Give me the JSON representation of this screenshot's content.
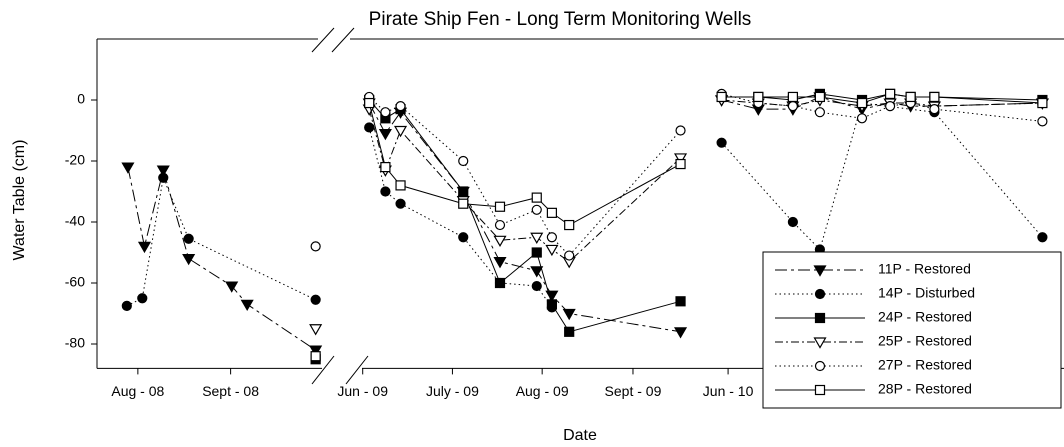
{
  "chart_data": {
    "type": "line",
    "title": "Pirate Ship Fen - Long Term Monitoring Wells",
    "x_label": "Date",
    "y_label": "Water Table (cm)",
    "ylim": [
      -88,
      20
    ],
    "yticks": [
      0,
      -20,
      -40,
      -60,
      -80
    ],
    "x_segments": [
      [
        2008.546,
        2008.757
      ],
      [
        2009.396,
        2009.729
      ],
      [
        2010.391,
        2010.728
      ]
    ],
    "xticks": [
      {
        "value": 2008.583,
        "label": "Aug - 08"
      },
      {
        "value": 2008.667,
        "label": "Sept - 08"
      },
      {
        "value": 2009.417,
        "label": "Jun - 09"
      },
      {
        "value": 2009.5,
        "label": "July - 09"
      },
      {
        "value": 2009.583,
        "label": "Aug - 09"
      },
      {
        "value": 2009.667,
        "label": "Sept - 09"
      },
      {
        "value": 2010.417,
        "label": "Jun - 10"
      }
    ],
    "legend": "lower right",
    "series": [
      {
        "name": "11P - Restored",
        "color": "#000000",
        "marker": "triangle-down",
        "filled": true,
        "line_style": "dash-dot",
        "x": [
          2008.574,
          2008.589,
          2008.606,
          2008.629,
          2008.668,
          2008.682,
          2008.744,
          null,
          2009.423,
          2009.438,
          2009.452,
          2009.51,
          2009.544,
          2009.578,
          2009.592,
          2009.608,
          2009.711,
          null,
          2010.411,
          2010.445,
          2010.477,
          2010.502,
          2010.541,
          2010.567,
          2010.586,
          2010.608,
          2010.708
        ],
        "values": [
          -22,
          -48,
          -23,
          -52,
          -61,
          -67,
          -82,
          null,
          -1,
          -11,
          -4,
          -30,
          -53,
          -56,
          -64,
          -70,
          -76,
          null,
          0,
          -3,
          -3,
          1,
          -3,
          -1,
          -2,
          -2,
          -1
        ]
      },
      {
        "name": "14P - Disturbed",
        "color": "#000000",
        "marker": "circle",
        "filled": true,
        "line_style": "dotted",
        "x": [
          2008.573,
          2008.587,
          2008.606,
          2008.629,
          2008.744,
          null,
          2009.423,
          2009.438,
          2009.452,
          2009.51,
          2009.544,
          2009.578,
          2009.592,
          null,
          2010.411,
          2010.477,
          2010.502,
          2010.541,
          2010.608,
          2010.708
        ],
        "values": [
          -67.5,
          -65,
          -25.5,
          -45.5,
          -65.5,
          null,
          -9,
          -30,
          -34,
          -45,
          -60,
          -61,
          -68,
          null,
          -14,
          -40,
          -49,
          -1,
          -4,
          -45
        ]
      },
      {
        "name": "24P - Restored",
        "color": "#000000",
        "marker": "square",
        "filled": true,
        "line_style": "solid",
        "x": [
          2008.744,
          null,
          2009.423,
          2009.438,
          2009.452,
          2009.51,
          2009.544,
          2009.578,
          2009.592,
          2009.608,
          2009.711,
          null,
          2010.411,
          2010.445,
          2010.477,
          2010.502,
          2010.541,
          2010.567,
          2010.586,
          2010.608,
          2010.708
        ],
        "values": [
          -85,
          null,
          0,
          -6,
          -3,
          -30,
          -60,
          -50,
          -67,
          -76,
          -66,
          null,
          1,
          1,
          0,
          2,
          0,
          2,
          1,
          1,
          0
        ]
      },
      {
        "name": "25P - Restored",
        "color": "#000000",
        "marker": "triangle-down",
        "filled": false,
        "line_style": "dash-dot-short",
        "x": [
          2008.744,
          null,
          2009.423,
          2009.438,
          2009.452,
          2009.51,
          2009.544,
          2009.578,
          2009.592,
          2009.608,
          2009.711,
          null,
          2010.411,
          2010.445,
          2010.477,
          2010.502,
          2010.541,
          2010.567,
          2010.586,
          2010.608,
          2010.708
        ],
        "values": [
          -75,
          null,
          -3,
          -23,
          -10,
          -33,
          -46,
          -45,
          -49,
          -53,
          -19,
          null,
          0,
          -1,
          -2,
          0,
          -2,
          -1,
          -1,
          -2,
          -1
        ]
      },
      {
        "name": "27P - Restored",
        "color": "#000000",
        "marker": "circle",
        "filled": false,
        "line_style": "dotted",
        "x": [
          2008.744,
          null,
          2009.423,
          2009.438,
          2009.452,
          2009.51,
          2009.544,
          2009.578,
          2009.592,
          2009.608,
          2009.711,
          null,
          2010.411,
          2010.445,
          2010.477,
          2010.502,
          2010.541,
          2010.567,
          2010.586,
          2010.608,
          2010.708
        ],
        "values": [
          -48,
          null,
          1,
          -4,
          -2,
          -20,
          -41,
          -36,
          -45,
          -51,
          -10,
          null,
          2,
          -1,
          -2,
          -4,
          -6,
          -2,
          -1,
          -3,
          -7
        ]
      },
      {
        "name": "28P - Restored",
        "color": "#000000",
        "marker": "square",
        "filled": false,
        "line_style": "solid",
        "x": [
          2008.744,
          null,
          2009.423,
          2009.438,
          2009.452,
          2009.51,
          2009.544,
          2009.578,
          2009.592,
          2009.608,
          2009.711,
          null,
          2010.411,
          2010.445,
          2010.477,
          2010.502,
          2010.541,
          2010.567,
          2010.586,
          2010.608,
          2010.708
        ],
        "values": [
          -84,
          null,
          -1,
          -22,
          -28,
          -34,
          -35,
          -32,
          -37,
          -41,
          -21,
          null,
          1,
          1,
          1,
          1,
          -1,
          2,
          1,
          1,
          -1
        ]
      }
    ]
  }
}
